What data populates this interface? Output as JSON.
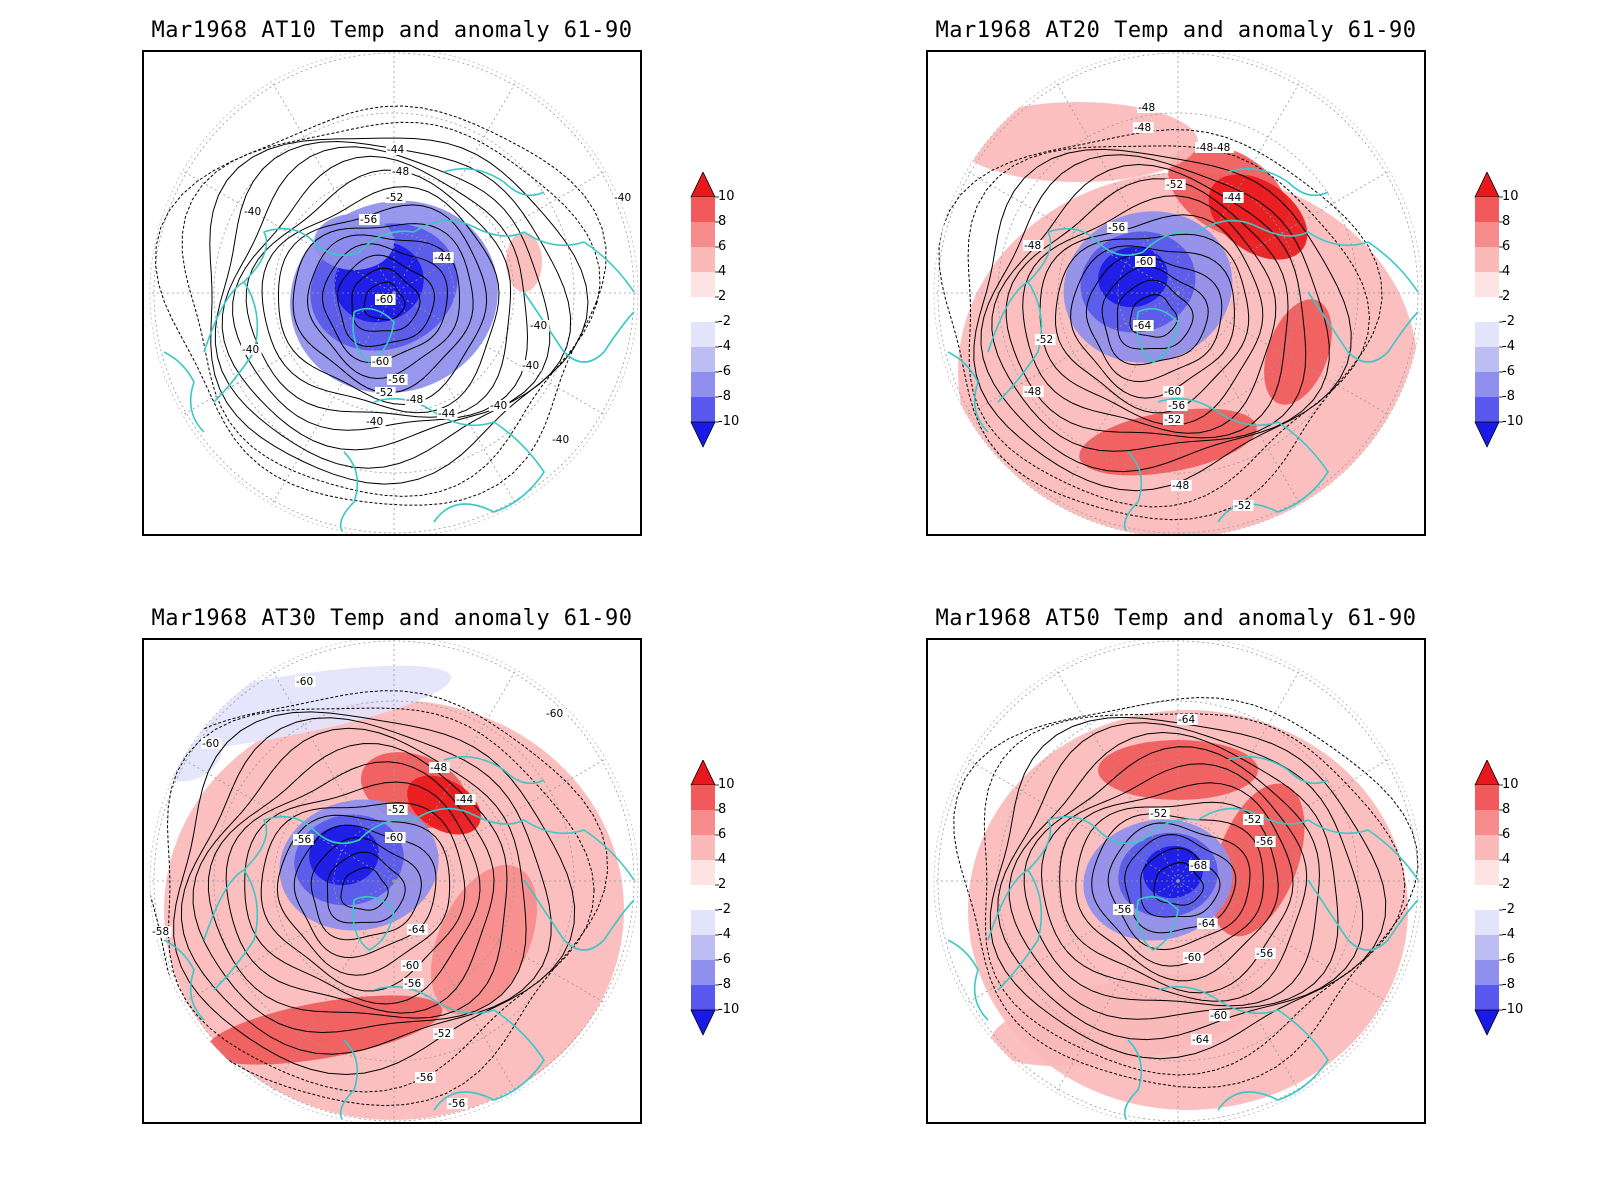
{
  "panels": [
    {
      "title": "Mar1968 AT10 Temp and anomaly 61-90",
      "labels": [
        "-44",
        "-48",
        "-52",
        "-56",
        "-60",
        "-60",
        "-56",
        "-52",
        "-48",
        "-44",
        "-40",
        "-40",
        "-40",
        "-40",
        "-40",
        "-40",
        "-40",
        "-40",
        "-44"
      ]
    },
    {
      "title": "Mar1968 AT20 Temp and anomaly 61-90",
      "labels": [
        "-48",
        "-48",
        "-48-48",
        "-52",
        "-44",
        "-56",
        "-48",
        "-60",
        "-64",
        "-52",
        "-48",
        "-60",
        "-56",
        "-52",
        "-48",
        "-52"
      ]
    },
    {
      "title": "Mar1968 AT30 Temp and anomaly 61-90",
      "labels": [
        "-60",
        "-60",
        "-60",
        "-48",
        "-44",
        "-52",
        "-56",
        "-60",
        "-64",
        "-60",
        "-56",
        "-58",
        "-52",
        "-56",
        "-56"
      ]
    },
    {
      "title": "Mar1968 AT50 Temp and anomaly 61-90",
      "labels": [
        "-64",
        "-52",
        "-52",
        "-56",
        "-68",
        "-56",
        "-64",
        "-60",
        "-56",
        "-60",
        "-64"
      ]
    }
  ],
  "colorbar": {
    "labels": [
      "10",
      "8",
      "6",
      "4",
      "2",
      "-2",
      "-4",
      "-6",
      "-8",
      "-10"
    ],
    "colors": [
      "#e8191c",
      "#f05a5a",
      "#f78c8c",
      "#fbbaba",
      "#fde3e3",
      "#ffffff",
      "#e3e3fb",
      "#bdbdf3",
      "#8f8fee",
      "#5858ec",
      "#1a1ae6"
    ]
  },
  "style": {
    "coast_color": "#3cc7c7",
    "contour_color": "#000000"
  }
}
